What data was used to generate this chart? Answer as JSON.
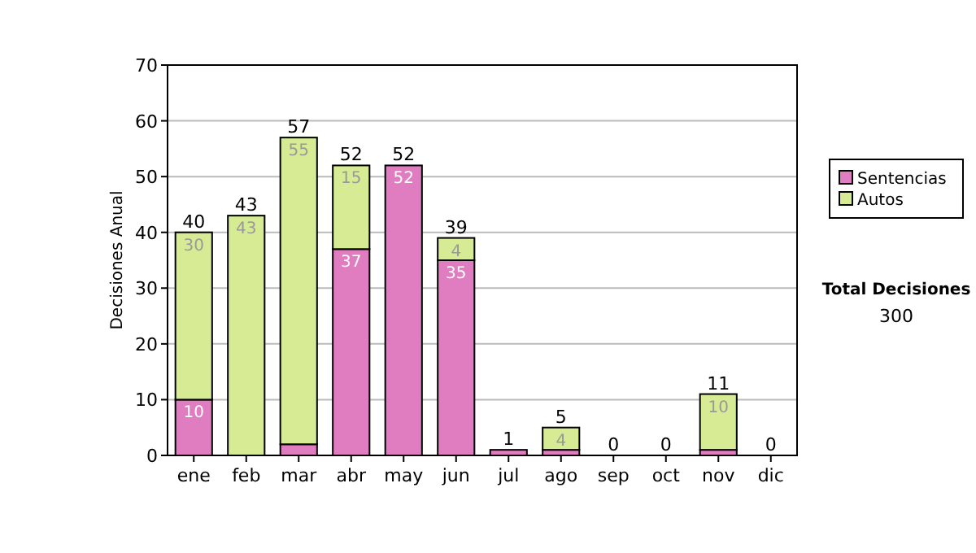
{
  "chart_data": {
    "type": "bar",
    "stacked": true,
    "ylabel": "Decisiones Anual",
    "categories": [
      "ene",
      "feb",
      "mar",
      "abr",
      "may",
      "jun",
      "jul",
      "ago",
      "sep",
      "oct",
      "nov",
      "dic"
    ],
    "series": [
      {
        "name": "Sentencias",
        "color": "#e07cc0",
        "values": [
          10,
          0,
          2,
          37,
          52,
          35,
          1,
          1,
          0,
          0,
          1,
          0
        ],
        "value_labels": [
          "10",
          null,
          null,
          "37",
          "52",
          "35",
          null,
          null,
          null,
          null,
          null,
          null
        ]
      },
      {
        "name": "Autos",
        "color": "#d6eb94",
        "values": [
          30,
          43,
          55,
          15,
          0,
          4,
          0,
          4,
          0,
          0,
          10,
          0
        ],
        "value_labels": [
          "30",
          "43",
          "55",
          "15",
          null,
          "4",
          null,
          "4",
          null,
          null,
          "10",
          null
        ]
      }
    ],
    "totals": [
      "40",
      "43",
      "57",
      "52",
      "52",
      "39",
      "1",
      "5",
      "0",
      "0",
      "11",
      "0"
    ],
    "ylim": [
      0,
      70
    ],
    "yticks": [
      0,
      10,
      20,
      30,
      40,
      50,
      60,
      70
    ],
    "grid": "y",
    "legend": "right",
    "annotations": [
      "Total Decisiones",
      "300"
    ]
  }
}
